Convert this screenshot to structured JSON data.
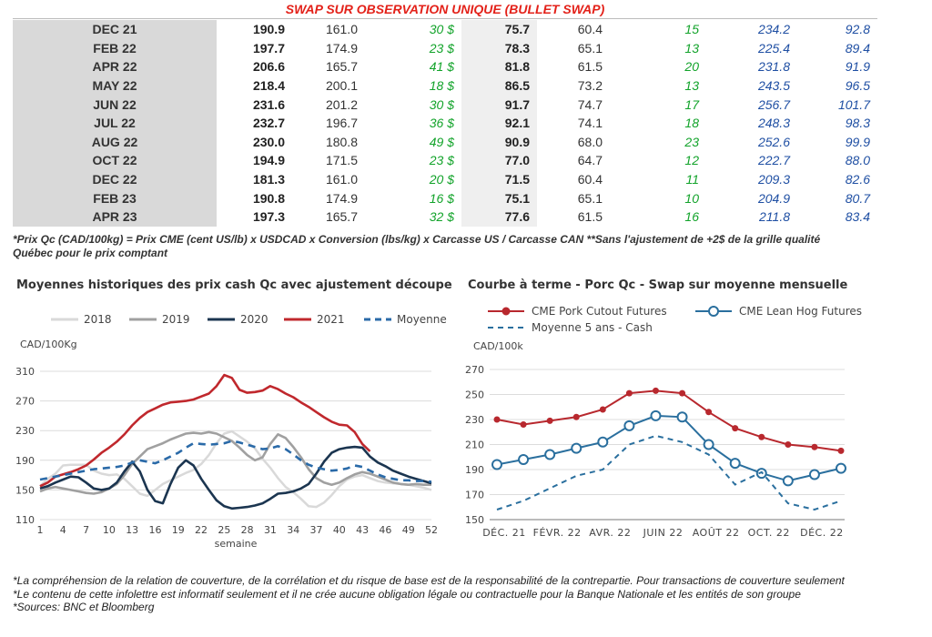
{
  "table": {
    "title": "SWAP SUR OBSERVATION UNIQUE (BULLET SWAP)",
    "rows": [
      [
        "DEC 21",
        "190.9",
        "161.0",
        "30 $",
        "75.7",
        "60.4",
        "15",
        "234.2",
        "92.8"
      ],
      [
        "FEB 22",
        "197.7",
        "174.9",
        "23 $",
        "78.3",
        "65.1",
        "13",
        "225.4",
        "89.4"
      ],
      [
        "APR 22",
        "206.6",
        "165.7",
        "41 $",
        "81.8",
        "61.5",
        "20",
        "231.8",
        "91.9"
      ],
      [
        "MAY 22",
        "218.4",
        "200.1",
        "18 $",
        "86.5",
        "73.2",
        "13",
        "243.5",
        "96.5"
      ],
      [
        "JUN 22",
        "231.6",
        "201.2",
        "30 $",
        "91.7",
        "74.7",
        "17",
        "256.7",
        "101.7"
      ],
      [
        "JUL 22",
        "232.7",
        "196.7",
        "36 $",
        "92.1",
        "74.1",
        "18",
        "248.3",
        "98.3"
      ],
      [
        "AUG 22",
        "230.0",
        "180.8",
        "49 $",
        "90.9",
        "68.0",
        "23",
        "252.6",
        "99.9"
      ],
      [
        "OCT 22",
        "194.9",
        "171.5",
        "23 $",
        "77.0",
        "64.7",
        "12",
        "222.7",
        "88.0"
      ],
      [
        "DEC 22",
        "181.3",
        "161.0",
        "20 $",
        "71.5",
        "60.4",
        "11",
        "209.3",
        "82.6"
      ],
      [
        "FEB 23",
        "190.8",
        "174.9",
        "16 $",
        "75.1",
        "65.1",
        "10",
        "204.9",
        "80.7"
      ],
      [
        "APR 23",
        "197.3",
        "165.7",
        "32 $",
        "77.6",
        "61.5",
        "16",
        "211.8",
        "83.4"
      ]
    ],
    "note_line1": "*Prix Qc (CAD/100kg) = Prix CME (cent US/lb) x USDCAD x Conversion (lbs/kg) x Carcasse US / Carcasse CAN **Sans l'ajustement de +2$ de la grille qualité",
    "note_line2": "Québec pour le prix comptant"
  },
  "colors": {
    "title_red": "#e32119",
    "green": "#12a32a",
    "blue": "#1f4fa3",
    "y2018": "#d9d9d9",
    "y2019": "#a0a0a0",
    "y2020": "#1b3550",
    "y2021": "#c0282d",
    "avg5": "#2a6aa8",
    "pork": "#b8282e",
    "lean": "#2a6f9e"
  },
  "chart_data": [
    {
      "type": "line",
      "title": "Moyennes historiques des prix cash Qc avec ajustement découpe",
      "ylabel": "CAD/100Kg",
      "xlabel": "semaine",
      "ylim": [
        110,
        310
      ],
      "yticks": [
        110,
        150,
        190,
        230,
        270,
        310
      ],
      "xlim": [
        1,
        52
      ],
      "xticks": [
        1,
        4,
        7,
        10,
        13,
        16,
        19,
        22,
        25,
        28,
        31,
        34,
        37,
        40,
        43,
        46,
        49,
        52
      ],
      "grid": true,
      "legend": "top",
      "series": [
        {
          "name": "2018",
          "style": "solid",
          "color_key": "y2018",
          "x": [
            1,
            2,
            3,
            4,
            5,
            6,
            7,
            8,
            9,
            10,
            11,
            12,
            13,
            14,
            15,
            16,
            17,
            18,
            19,
            20,
            21,
            22,
            23,
            24,
            25,
            26,
            27,
            28,
            29,
            30,
            31,
            32,
            33,
            34,
            35,
            36,
            37,
            38,
            39,
            40,
            41,
            42,
            43,
            44,
            45,
            46,
            47,
            48,
            49,
            50,
            51,
            52
          ],
          "values": [
            155,
            165,
            172,
            183,
            184,
            184,
            184,
            176,
            172,
            170,
            171,
            165,
            155,
            145,
            142,
            150,
            158,
            163,
            168,
            173,
            177,
            185,
            197,
            213,
            226,
            229,
            222,
            215,
            206,
            192,
            180,
            166,
            154,
            147,
            138,
            128,
            127,
            133,
            143,
            155,
            164,
            168,
            170,
            166,
            162,
            160,
            159,
            158,
            157,
            155,
            153,
            150
          ]
        },
        {
          "name": "2019",
          "style": "solid",
          "color_key": "y2019",
          "x": [
            1,
            2,
            3,
            4,
            5,
            6,
            7,
            8,
            9,
            10,
            11,
            12,
            13,
            14,
            15,
            16,
            17,
            18,
            19,
            20,
            21,
            22,
            23,
            24,
            25,
            26,
            27,
            28,
            29,
            30,
            31,
            32,
            33,
            34,
            35,
            36,
            37,
            38,
            39,
            40,
            41,
            42,
            43,
            44,
            45,
            46,
            47,
            48,
            49,
            50,
            51,
            52
          ],
          "values": [
            148,
            152,
            154,
            152,
            150,
            148,
            146,
            145,
            147,
            152,
            158,
            170,
            185,
            195,
            205,
            209,
            213,
            218,
            222,
            226,
            227,
            226,
            228,
            226,
            221,
            216,
            207,
            197,
            190,
            194,
            212,
            225,
            220,
            208,
            194,
            178,
            166,
            160,
            157,
            160,
            166,
            171,
            174,
            172,
            168,
            164,
            160,
            158,
            157,
            158,
            157,
            157
          ]
        },
        {
          "name": "2020",
          "style": "solid",
          "color_key": "y2020",
          "x": [
            1,
            2,
            3,
            4,
            5,
            6,
            7,
            8,
            9,
            10,
            11,
            12,
            13,
            14,
            15,
            16,
            17,
            18,
            19,
            20,
            21,
            22,
            23,
            24,
            25,
            26,
            27,
            28,
            29,
            30,
            31,
            32,
            33,
            34,
            35,
            36,
            37,
            38,
            39,
            40,
            41,
            42,
            43,
            44,
            45,
            46,
            47,
            48,
            49,
            50,
            51,
            52
          ],
          "values": [
            152,
            155,
            160,
            164,
            168,
            167,
            160,
            152,
            150,
            152,
            160,
            175,
            188,
            175,
            150,
            135,
            132,
            158,
            180,
            190,
            183,
            165,
            150,
            136,
            128,
            125,
            126,
            127,
            129,
            132,
            138,
            145,
            146,
            148,
            152,
            158,
            172,
            188,
            200,
            205,
            207,
            208,
            207,
            195,
            187,
            182,
            176,
            172,
            168,
            165,
            162,
            159
          ]
        },
        {
          "name": "2021",
          "style": "solid",
          "color_key": "y2021",
          "x": [
            1,
            2,
            3,
            4,
            5,
            6,
            7,
            8,
            9,
            10,
            11,
            12,
            13,
            14,
            15,
            16,
            17,
            18,
            19,
            20,
            21,
            22,
            23,
            24,
            25,
            26,
            27,
            28,
            29,
            30,
            31,
            32,
            33,
            34,
            35,
            36,
            37,
            38,
            39,
            40,
            41,
            42,
            43,
            44
          ],
          "values": [
            155,
            160,
            168,
            171,
            174,
            178,
            183,
            191,
            200,
            207,
            215,
            225,
            237,
            247,
            255,
            260,
            265,
            268,
            269,
            270,
            272,
            276,
            280,
            290,
            305,
            301,
            285,
            281,
            282,
            284,
            290,
            286,
            280,
            275,
            268,
            262,
            255,
            248,
            242,
            238,
            237,
            228,
            212,
            202
          ]
        },
        {
          "name": "Moyenne 5 ans",
          "style": "dashed",
          "color_key": "avg5",
          "x": [
            1,
            2,
            3,
            4,
            5,
            6,
            7,
            8,
            9,
            10,
            11,
            12,
            13,
            14,
            15,
            16,
            17,
            18,
            19,
            20,
            21,
            22,
            23,
            24,
            25,
            26,
            27,
            28,
            29,
            30,
            31,
            32,
            33,
            34,
            35,
            36,
            37,
            38,
            39,
            40,
            41,
            42,
            43,
            44,
            45,
            46,
            47,
            48,
            49,
            50,
            51,
            52
          ],
          "values": [
            164,
            166,
            168,
            170,
            172,
            174,
            176,
            178,
            179,
            180,
            181,
            183,
            187,
            190,
            188,
            186,
            190,
            195,
            200,
            207,
            213,
            212,
            211,
            212,
            213,
            216,
            214,
            211,
            208,
            205,
            206,
            209,
            205,
            198,
            190,
            184,
            180,
            178,
            176,
            177,
            179,
            183,
            181,
            176,
            171,
            167,
            165,
            163,
            163,
            162,
            162,
            161
          ]
        }
      ]
    },
    {
      "type": "line",
      "title": "Courbe à terme - Porc Qc - Swap sur moyenne mensuelle",
      "ylabel": "CAD/100k",
      "ylim": [
        150,
        270
      ],
      "yticks": [
        150,
        170,
        190,
        210,
        230,
        250,
        270
      ],
      "xticks": [
        "DÉC. 21",
        "FÉVR. 22",
        "AVR. 22",
        "JUIN 22",
        "AOÛT 22",
        "OCT. 22",
        "DÉC. 22"
      ],
      "grid": true,
      "legend": "top",
      "series": [
        {
          "name": "CME Pork Cutout Futures",
          "style": "solid-markers",
          "color_key": "pork",
          "x": [
            0,
            1,
            2,
            3,
            4,
            5,
            6,
            7,
            8,
            9,
            10,
            11,
            12,
            13,
            14
          ],
          "values": [
            230,
            226,
            229,
            232,
            238,
            251,
            253,
            251,
            236,
            223,
            216,
            210,
            208,
            205,
            null
          ]
        },
        {
          "name": "CME Lean Hog Futures",
          "style": "solid-markers",
          "color_key": "lean",
          "x": [
            0,
            1,
            2,
            3,
            4,
            5,
            6,
            7,
            8,
            9,
            10,
            11,
            12,
            13,
            14
          ],
          "values": [
            194,
            198,
            202,
            207,
            212,
            225,
            233,
            232,
            210,
            195,
            187,
            181,
            186,
            191,
            null
          ]
        },
        {
          "name": "Moyenne 5 ans - Cash",
          "style": "dashed",
          "color_key": "lean",
          "x": [
            0,
            1,
            2,
            3,
            4,
            5,
            6,
            7,
            8,
            9,
            10,
            11,
            12,
            13,
            14
          ],
          "values": [
            158,
            165,
            175,
            185,
            190,
            210,
            217,
            212,
            202,
            178,
            188,
            163,
            158,
            165,
            null
          ]
        }
      ]
    }
  ],
  "footer": {
    "line1": "*La compréhension de la relation de couverture, de la corrélation et du risque de base est de la responsabilité de la contrepartie. Pour transactions de couverture seulement",
    "line2": "*Le contenu de cette infolettre est informatif seulement et il ne crée aucune obligation légale ou contractuelle pour la Banque Nationale et les entités de son groupe",
    "line3": "*Sources: BNC et Bloomberg"
  }
}
